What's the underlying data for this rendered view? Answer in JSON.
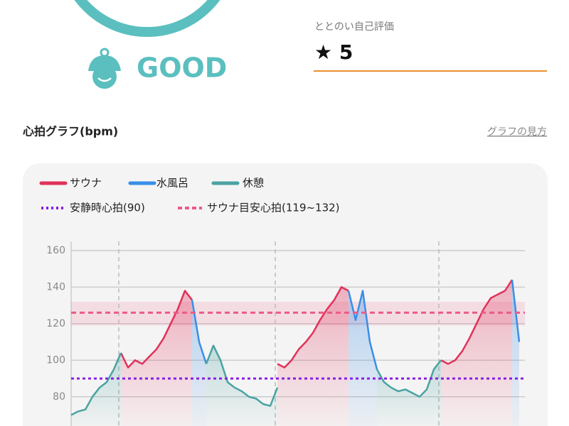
{
  "header": {
    "status": "GOOD",
    "rating_label": "ととのい自己評価",
    "rating": "★ 5"
  },
  "section": {
    "title": "心拍グラフ(bpm)",
    "help_link": "グラフの見方"
  },
  "chart_data": {
    "type": "line",
    "series": [
      {
        "name": "サウナ",
        "color": "#e0325a",
        "values": [
          null,
          null,
          null,
          null,
          null,
          null,
          null,
          104,
          96,
          100,
          98,
          102,
          106,
          112,
          120,
          128,
          138,
          133,
          null,
          null,
          null,
          null,
          null,
          null,
          null,
          null,
          null,
          null,
          null,
          98,
          96,
          100,
          106,
          110,
          115,
          122,
          128,
          133,
          140,
          138,
          null,
          null,
          null,
          null,
          null,
          null,
          null,
          null,
          null,
          null,
          null,
          null,
          100,
          98,
          100,
          105,
          112,
          120,
          128,
          134,
          136,
          138,
          144,
          null
        ]
      },
      {
        "name": "水風呂",
        "color": "#3a8ee6",
        "values": [
          null,
          null,
          null,
          null,
          null,
          null,
          null,
          null,
          null,
          null,
          null,
          null,
          null,
          null,
          null,
          null,
          null,
          133,
          110,
          98,
          null,
          null,
          null,
          null,
          null,
          null,
          null,
          null,
          null,
          null,
          null,
          null,
          null,
          null,
          null,
          null,
          null,
          null,
          null,
          138,
          122,
          138,
          110,
          95,
          null,
          null,
          null,
          null,
          null,
          null,
          null,
          null,
          null,
          null,
          null,
          null,
          null,
          null,
          null,
          null,
          null,
          null,
          144,
          110
        ]
      },
      {
        "name": "休憩",
        "color": "#4aa3a2",
        "values": [
          70,
          72,
          73,
          80,
          85,
          88,
          95,
          104,
          null,
          null,
          null,
          null,
          null,
          null,
          null,
          null,
          null,
          null,
          null,
          98,
          108,
          100,
          88,
          85,
          83,
          80,
          79,
          76,
          75,
          85,
          null,
          null,
          null,
          null,
          null,
          null,
          null,
          null,
          null,
          null,
          null,
          null,
          null,
          95,
          88,
          85,
          83,
          84,
          82,
          80,
          84,
          95,
          100,
          null,
          null,
          null,
          null,
          null,
          null,
          null,
          null,
          null,
          null,
          null
        ]
      }
    ],
    "reference_lines": [
      {
        "name": "安静時心拍(90)",
        "value": 90,
        "color": "#8a1ee6"
      },
      {
        "name": "サウナ目安心拍(119~132)",
        "value": 126,
        "range": [
          119,
          132
        ],
        "color": "#ec5b86"
      }
    ],
    "ylim": [
      64,
      165
    ],
    "yticks": [
      80,
      100,
      120,
      140,
      160
    ],
    "grid": true
  }
}
